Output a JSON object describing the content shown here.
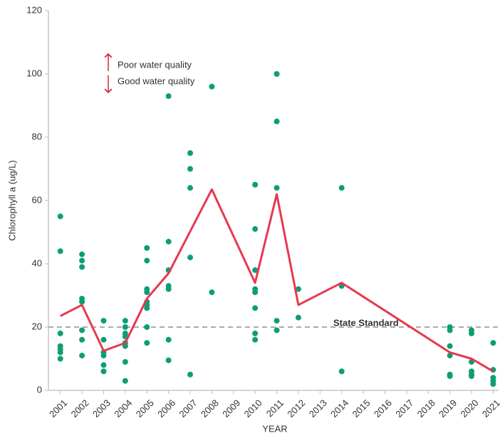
{
  "chart_data": {
    "type": "scatter",
    "xlabel": "YEAR",
    "ylabel": "Chlorophyll a (ug/L)",
    "xlim": [
      2000.45,
      2021.25
    ],
    "xticks": [
      2001,
      2002,
      2003,
      2004,
      2005,
      2006,
      2007,
      2008,
      2009,
      2010,
      2011,
      2012,
      2013,
      2014,
      2015,
      2016,
      2017,
      2018,
      2019,
      2020,
      2021
    ],
    "ylim": [
      0,
      120
    ],
    "yticks": [
      0,
      20,
      40,
      60,
      80,
      100,
      120
    ],
    "grid": false,
    "series": [
      {
        "type": "scatter",
        "color": "#0f9d76",
        "x": [
          2001,
          2001,
          2001,
          2001,
          2001,
          2001,
          2001,
          2002,
          2002,
          2002,
          2002,
          2002,
          2002,
          2002,
          2002,
          2003,
          2003,
          2003,
          2003,
          2003,
          2003,
          2004,
          2004,
          2004,
          2004,
          2004,
          2004,
          2004,
          2004,
          2005,
          2005,
          2005,
          2005,
          2005,
          2005,
          2005,
          2005,
          2005,
          2006,
          2006,
          2006,
          2006,
          2006,
          2006,
          2006,
          2007,
          2007,
          2007,
          2007,
          2007,
          2008,
          2008,
          2010,
          2010,
          2010,
          2010,
          2010,
          2010,
          2010,
          2010,
          2011,
          2011,
          2011,
          2011,
          2011,
          2012,
          2012,
          2014,
          2014,
          2014,
          2019,
          2019,
          2019,
          2019,
          2019,
          2019,
          2020,
          2020,
          2020,
          2020,
          2020,
          2020,
          2021,
          2021,
          2021,
          2021,
          2021
        ],
        "values": [
          55,
          44,
          18,
          14,
          13,
          12,
          10,
          43,
          41,
          39,
          29,
          28,
          19,
          16,
          11,
          22,
          16,
          12,
          11,
          8,
          6,
          22,
          20,
          18,
          17,
          15,
          14,
          9,
          3,
          45,
          41,
          32,
          31,
          28,
          27,
          26,
          20,
          15,
          93,
          47,
          38,
          33,
          32,
          16,
          9.5,
          75,
          70,
          64,
          42,
          5,
          96,
          31,
          65,
          51,
          38,
          32,
          31,
          26,
          18,
          16,
          100,
          85,
          64,
          22,
          19,
          32,
          23,
          64,
          33,
          6,
          20,
          19,
          14,
          11,
          5,
          4.5,
          19,
          18,
          9,
          6,
          5,
          4.5,
          15,
          6.5,
          4,
          3,
          2
        ]
      },
      {
        "type": "line",
        "color": "#e8384f",
        "x": [
          2001,
          2002,
          2003,
          2004,
          2005,
          2006,
          2008,
          2010,
          2011,
          2012,
          2014,
          2019,
          2020,
          2021
        ],
        "values": [
          23.5,
          27,
          12.5,
          15,
          29,
          37,
          63.5,
          34,
          62,
          27,
          34,
          12,
          10,
          6
        ]
      }
    ],
    "reference_line": {
      "value": 20,
      "label": "State Standard",
      "color": "#aaaaaa"
    },
    "annotations": [
      "Poor water quality",
      "Good water quality"
    ]
  }
}
